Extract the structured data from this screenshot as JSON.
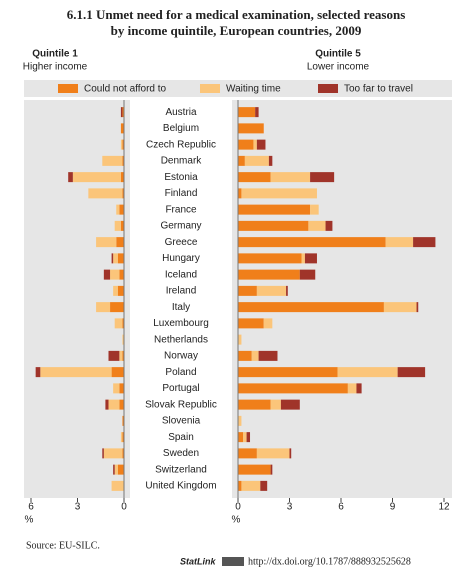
{
  "title": [
    "6.1.1 Unmet need for a medical examination, selected reasons",
    "by income quintile, European countries, 2009"
  ],
  "chart_data": {
    "type": "butterfly-bar",
    "categories": [
      "Austria",
      "Belgium",
      "Czech Republic",
      "Denmark",
      "Estonia",
      "Finland",
      "France",
      "Germany",
      "Greece",
      "Hungary",
      "Iceland",
      "Ireland",
      "Italy",
      "Luxembourg",
      "Netherlands",
      "Norway",
      "Poland",
      "Portugal",
      "Slovak Republic",
      "Slovenia",
      "Spain",
      "Sweden",
      "Switzerland",
      "United Kingdom"
    ],
    "series": [
      {
        "name": "Could not afford to",
        "color": "#f07f1a"
      },
      {
        "name": "Waiting time",
        "color": "#fbc57a"
      },
      {
        "name": "Too far to travel",
        "color": "#a0342a"
      }
    ],
    "panels": [
      {
        "title": "Quintile 1",
        "subtitle": "Higher income",
        "xlim": [
          6,
          0
        ],
        "xticks": [
          6,
          3,
          0
        ],
        "xlabel": "%",
        "values": [
          [
            0.1,
            0.2,
            0.1,
            0.1,
            0.2,
            0.1,
            0.3,
            0.2,
            0.5,
            0.4,
            0.3,
            0.4,
            0.9,
            0.1,
            0.0,
            0.1,
            0.8,
            0.3,
            0.3,
            0.1,
            0.1,
            0.1,
            0.4,
            0.0
          ],
          [
            0.0,
            0.0,
            0.1,
            1.3,
            3.1,
            2.2,
            0.2,
            0.4,
            1.3,
            0.3,
            0.6,
            0.3,
            0.9,
            0.5,
            0.1,
            0.2,
            4.6,
            0.4,
            0.7,
            0.0,
            0.1,
            1.2,
            0.2,
            0.8
          ],
          [
            0.1,
            0.0,
            0.0,
            0.0,
            0.3,
            0.0,
            0.0,
            0.0,
            0.0,
            0.1,
            0.4,
            0.0,
            0.0,
            0.0,
            0.0,
            0.7,
            0.3,
            0.0,
            0.2,
            0.0,
            0.0,
            0.1,
            0.1,
            0.0
          ]
        ]
      },
      {
        "title": "Quintile 5",
        "subtitle": "Lower income",
        "xlim": [
          0,
          12
        ],
        "xticks": [
          0,
          3,
          6,
          9,
          12
        ],
        "xlabel": "%",
        "values": [
          [
            1.0,
            1.5,
            0.9,
            0.4,
            1.9,
            0.2,
            4.2,
            4.1,
            8.6,
            3.7,
            3.6,
            1.1,
            8.5,
            1.5,
            0.0,
            0.8,
            5.8,
            6.4,
            1.9,
            0.0,
            0.3,
            1.1,
            1.9,
            0.2
          ],
          [
            0.0,
            0.0,
            0.2,
            1.4,
            2.3,
            4.4,
            0.5,
            1.0,
            1.6,
            0.2,
            0.0,
            1.7,
            1.9,
            0.5,
            0.2,
            0.4,
            3.5,
            0.5,
            0.6,
            0.2,
            0.2,
            1.9,
            0.0,
            1.1
          ],
          [
            0.2,
            0.0,
            0.5,
            0.2,
            1.4,
            0.0,
            0.0,
            0.4,
            1.3,
            0.7,
            0.9,
            0.1,
            0.1,
            0.0,
            0.0,
            1.1,
            1.6,
            0.3,
            1.1,
            0.0,
            0.2,
            0.1,
            0.1,
            0.4
          ]
        ]
      }
    ]
  },
  "source": "Source: EU-SILC.",
  "statlink": {
    "label": "StatLink",
    "url": "http://dx.doi.org/10.1787/888932525628"
  }
}
